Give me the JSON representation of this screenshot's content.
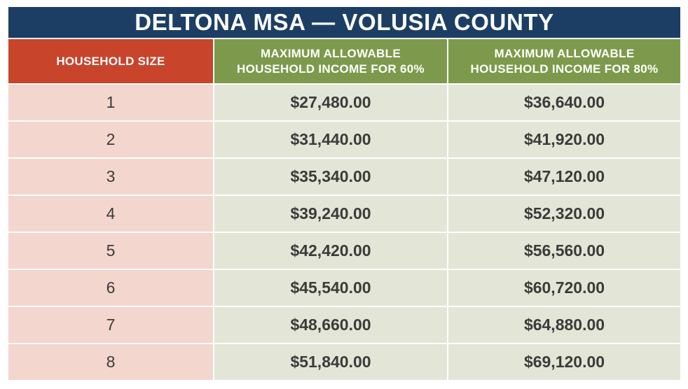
{
  "title": "DELTONA MSA — VOLUSIA COUNTY",
  "headers": {
    "size": "HOUSEHOLD SIZE",
    "inc60": "MAXIMUM ALLOWABLE\nHOUSEHOLD INCOME FOR 60%",
    "inc80": "MAXIMUM ALLOWABLE\nHOUSEHOLD INCOME FOR 80%"
  },
  "rows": [
    {
      "size": "1",
      "inc60": "$27,480.00",
      "inc80": "$36,640.00"
    },
    {
      "size": "2",
      "inc60": "$31,440.00",
      "inc80": "$41,920.00"
    },
    {
      "size": "3",
      "inc60": "$35,340.00",
      "inc80": "$47,120.00"
    },
    {
      "size": "4",
      "inc60": "$39,240.00",
      "inc80": "$52,320.00"
    },
    {
      "size": "5",
      "inc60": "$42,420.00",
      "inc80": "$56,560.00"
    },
    {
      "size": "6",
      "inc60": "$45,540.00",
      "inc80": "$60,720.00"
    },
    {
      "size": "7",
      "inc60": "$48,660.00",
      "inc80": "$64,880.00"
    },
    {
      "size": "8",
      "inc60": "$51,840.00",
      "inc80": "$69,120.00"
    }
  ],
  "colors": {
    "title_bg": "#1d3e64",
    "size_header_bg": "#c8442b",
    "income_header_bg": "#7d9a4c",
    "size_cell_bg": "#f3d6cd",
    "income_cell_bg": "#e3e6d6"
  }
}
